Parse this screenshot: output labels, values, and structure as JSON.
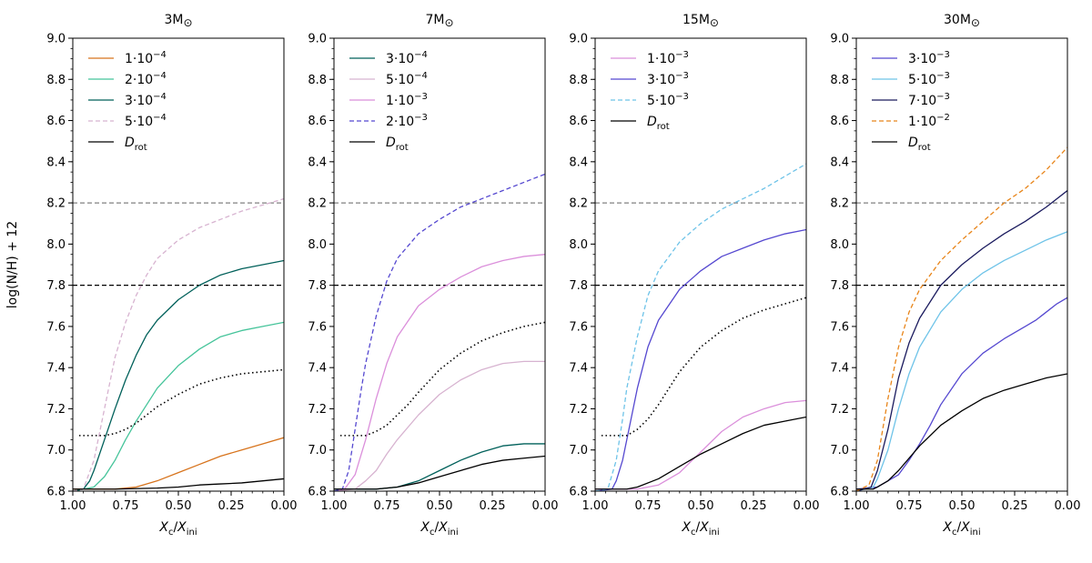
{
  "chart_data": {
    "type": "line",
    "ylabel": "log(N/H) + 12",
    "xlabel": "X_c/X_ini",
    "xlim": [
      1.0,
      0.0
    ],
    "ylim": [
      6.8,
      9.0
    ],
    "x_ticks": [
      "1.00",
      "0.75",
      "0.50",
      "0.25",
      "0.00"
    ],
    "y_ticks": [
      "6.8",
      "7.0",
      "7.2",
      "7.4",
      "7.6",
      "7.8",
      "8.0",
      "8.2",
      "8.4",
      "8.6",
      "8.8",
      "9.0"
    ],
    "reference_lines": [
      {
        "y": 8.2,
        "color": "#808080",
        "style": "dashed"
      },
      {
        "y": 7.8,
        "color": "#000000",
        "style": "dashed"
      }
    ],
    "legend_placement": "upper-left",
    "panels": [
      {
        "title": "3M",
        "series": [
          {
            "name": "1·10⁻⁴",
            "color": "#d7731c",
            "style": "solid",
            "x": [
              1.0,
              0.9,
              0.8,
              0.7,
              0.6,
              0.5,
              0.4,
              0.3,
              0.2,
              0.1,
              0.0
            ],
            "y": [
              6.81,
              6.81,
              6.81,
              6.82,
              6.85,
              6.89,
              6.93,
              6.97,
              7.0,
              7.03,
              7.06
            ]
          },
          {
            "name": "2·10⁻⁴",
            "color": "#45c49a",
            "style": "solid",
            "x": [
              1.0,
              0.95,
              0.9,
              0.85,
              0.8,
              0.75,
              0.7,
              0.6,
              0.5,
              0.4,
              0.3,
              0.2,
              0.1,
              0.0
            ],
            "y": [
              6.8,
              6.81,
              6.82,
              6.87,
              6.95,
              7.05,
              7.14,
              7.3,
              7.41,
              7.49,
              7.55,
              7.58,
              7.6,
              7.62
            ]
          },
          {
            "name": "3·10⁻⁴",
            "color": "#00605a",
            "style": "solid",
            "x": [
              1.0,
              0.95,
              0.92,
              0.9,
              0.85,
              0.8,
              0.75,
              0.7,
              0.65,
              0.6,
              0.5,
              0.4,
              0.3,
              0.2,
              0.1,
              0.0
            ],
            "y": [
              6.8,
              6.81,
              6.85,
              6.9,
              7.05,
              7.2,
              7.34,
              7.46,
              7.56,
              7.63,
              7.73,
              7.8,
              7.85,
              7.88,
              7.9,
              7.92
            ]
          },
          {
            "name": "5·10⁻⁴",
            "color": "#d7b3d0",
            "style": "dashed",
            "x": [
              1.0,
              0.95,
              0.9,
              0.87,
              0.85,
              0.8,
              0.75,
              0.7,
              0.65,
              0.6,
              0.5,
              0.4,
              0.3,
              0.2,
              0.1,
              0.0
            ],
            "y": [
              6.8,
              6.81,
              6.95,
              7.1,
              7.2,
              7.45,
              7.62,
              7.75,
              7.85,
              7.93,
              8.02,
              8.08,
              8.12,
              8.16,
              8.19,
              8.22
            ]
          },
          {
            "name": "D_rot",
            "color": "#000000",
            "style": "solid",
            "x": [
              1.0,
              0.8,
              0.6,
              0.5,
              0.4,
              0.3,
              0.2,
              0.1,
              0.0
            ],
            "y": [
              6.81,
              6.81,
              6.815,
              6.82,
              6.83,
              6.835,
              6.84,
              6.85,
              6.86
            ]
          },
          {
            "name": "",
            "color": "#000000",
            "style": "dotted",
            "x": [
              0.97,
              0.85,
              0.8,
              0.75,
              0.7,
              0.65,
              0.6,
              0.5,
              0.4,
              0.3,
              0.2,
              0.1,
              0.0
            ],
            "y": [
              7.07,
              7.07,
              7.08,
              7.1,
              7.13,
              7.17,
              7.21,
              7.27,
              7.32,
              7.35,
              7.37,
              7.38,
              7.39
            ]
          }
        ]
      },
      {
        "title": "7M",
        "series": [
          {
            "name": "3·10⁻⁴",
            "color": "#00605a",
            "style": "solid",
            "x": [
              1.0,
              0.8,
              0.7,
              0.6,
              0.5,
              0.4,
              0.3,
              0.2,
              0.1,
              0.0
            ],
            "y": [
              6.81,
              6.81,
              6.82,
              6.85,
              6.9,
              6.95,
              6.99,
              7.02,
              7.03,
              7.03
            ]
          },
          {
            "name": "5·10⁻⁴",
            "color": "#d7b3d0",
            "style": "solid",
            "x": [
              1.0,
              0.9,
              0.85,
              0.8,
              0.75,
              0.7,
              0.6,
              0.5,
              0.4,
              0.3,
              0.2,
              0.1,
              0.0
            ],
            "y": [
              6.8,
              6.81,
              6.85,
              6.9,
              6.98,
              7.05,
              7.17,
              7.27,
              7.34,
              7.39,
              7.42,
              7.43,
              7.43
            ]
          },
          {
            "name": "1·10⁻³",
            "color": "#db8fdb",
            "style": "solid",
            "x": [
              1.0,
              0.95,
              0.9,
              0.85,
              0.8,
              0.75,
              0.7,
              0.6,
              0.5,
              0.4,
              0.3,
              0.2,
              0.1,
              0.0
            ],
            "y": [
              6.8,
              6.81,
              6.88,
              7.05,
              7.25,
              7.42,
              7.55,
              7.7,
              7.78,
              7.84,
              7.89,
              7.92,
              7.94,
              7.95
            ]
          },
          {
            "name": "2·10⁻³",
            "color": "#5548d0",
            "style": "dashed",
            "x": [
              1.0,
              0.96,
              0.93,
              0.9,
              0.87,
              0.85,
              0.8,
              0.75,
              0.7,
              0.6,
              0.5,
              0.4,
              0.3,
              0.2,
              0.1,
              0.0
            ],
            "y": [
              6.8,
              6.81,
              6.9,
              7.1,
              7.3,
              7.42,
              7.65,
              7.82,
              7.93,
              8.05,
              8.12,
              8.18,
              8.22,
              8.26,
              8.3,
              8.34
            ]
          },
          {
            "name": "D_rot",
            "color": "#000000",
            "style": "solid",
            "x": [
              1.0,
              0.8,
              0.7,
              0.6,
              0.5,
              0.4,
              0.3,
              0.2,
              0.1,
              0.0
            ],
            "y": [
              6.81,
              6.81,
              6.82,
              6.84,
              6.87,
              6.9,
              6.93,
              6.95,
              6.96,
              6.97
            ]
          },
          {
            "name": "",
            "color": "#000000",
            "style": "dotted",
            "x": [
              0.97,
              0.85,
              0.8,
              0.75,
              0.7,
              0.65,
              0.6,
              0.5,
              0.4,
              0.3,
              0.2,
              0.1,
              0.0
            ],
            "y": [
              7.07,
              7.07,
              7.09,
              7.12,
              7.17,
              7.22,
              7.28,
              7.39,
              7.47,
              7.53,
              7.57,
              7.6,
              7.62
            ]
          }
        ]
      },
      {
        "title": "15M",
        "series": [
          {
            "name": "1·10⁻³",
            "color": "#db8fdb",
            "style": "solid",
            "x": [
              1.0,
              0.8,
              0.7,
              0.6,
              0.5,
              0.4,
              0.3,
              0.2,
              0.1,
              0.0
            ],
            "y": [
              6.81,
              6.81,
              6.83,
              6.89,
              6.99,
              7.09,
              7.16,
              7.2,
              7.23,
              7.24
            ]
          },
          {
            "name": "3·10⁻³",
            "color": "#5548d0",
            "style": "solid",
            "x": [
              1.0,
              0.92,
              0.9,
              0.87,
              0.85,
              0.8,
              0.75,
              0.7,
              0.6,
              0.5,
              0.4,
              0.3,
              0.2,
              0.1,
              0.0
            ],
            "y": [
              6.8,
              6.81,
              6.85,
              6.95,
              7.05,
              7.3,
              7.5,
              7.63,
              7.78,
              7.87,
              7.94,
              7.98,
              8.02,
              8.05,
              8.07
            ]
          },
          {
            "name": "5·10⁻³",
            "color": "#6ec3e8",
            "style": "dashed",
            "x": [
              1.0,
              0.94,
              0.9,
              0.87,
              0.85,
              0.8,
              0.75,
              0.7,
              0.6,
              0.5,
              0.4,
              0.3,
              0.2,
              0.1,
              0.0
            ],
            "y": [
              6.8,
              6.81,
              6.95,
              7.15,
              7.3,
              7.55,
              7.75,
              7.87,
              8.01,
              8.1,
              8.17,
              8.22,
              8.27,
              8.33,
              8.39
            ]
          },
          {
            "name": "D_rot",
            "color": "#000000",
            "style": "solid",
            "x": [
              1.0,
              0.85,
              0.8,
              0.7,
              0.6,
              0.5,
              0.4,
              0.3,
              0.2,
              0.1,
              0.0
            ],
            "y": [
              6.81,
              6.81,
              6.82,
              6.86,
              6.92,
              6.98,
              7.03,
              7.08,
              7.12,
              7.14,
              7.16
            ]
          },
          {
            "name": "",
            "color": "#000000",
            "style": "dotted",
            "x": [
              0.97,
              0.85,
              0.8,
              0.75,
              0.7,
              0.65,
              0.6,
              0.5,
              0.4,
              0.3,
              0.2,
              0.1,
              0.0
            ],
            "y": [
              7.07,
              7.07,
              7.1,
              7.15,
              7.22,
              7.3,
              7.38,
              7.5,
              7.58,
              7.64,
              7.68,
              7.71,
              7.74
            ]
          }
        ]
      },
      {
        "title": "30M",
        "series": [
          {
            "name": "3·10⁻³",
            "color": "#5548d0",
            "style": "solid",
            "x": [
              1.0,
              0.9,
              0.8,
              0.75,
              0.7,
              0.65,
              0.6,
              0.5,
              0.4,
              0.3,
              0.25,
              0.2,
              0.15,
              0.1,
              0.05,
              0.0
            ],
            "y": [
              6.81,
              6.82,
              6.88,
              6.95,
              7.03,
              7.12,
              7.22,
              7.37,
              7.47,
              7.54,
              7.57,
              7.6,
              7.63,
              7.67,
              7.71,
              7.74
            ]
          },
          {
            "name": "5·10⁻³",
            "color": "#6ec3e8",
            "style": "solid",
            "x": [
              1.0,
              0.92,
              0.9,
              0.85,
              0.8,
              0.75,
              0.7,
              0.6,
              0.5,
              0.4,
              0.3,
              0.2,
              0.1,
              0.0
            ],
            "y": [
              6.8,
              6.82,
              6.86,
              7.0,
              7.2,
              7.37,
              7.5,
              7.67,
              7.78,
              7.86,
              7.92,
              7.97,
              8.02,
              8.06
            ]
          },
          {
            "name": "7·10⁻³",
            "color": "#1a1a5e",
            "style": "solid",
            "x": [
              1.0,
              0.93,
              0.9,
              0.85,
              0.8,
              0.75,
              0.7,
              0.6,
              0.5,
              0.4,
              0.3,
              0.2,
              0.1,
              0.0
            ],
            "y": [
              6.8,
              6.82,
              6.9,
              7.1,
              7.35,
              7.52,
              7.64,
              7.8,
              7.9,
              7.98,
              8.05,
              8.11,
              8.18,
              8.26
            ]
          },
          {
            "name": "1·10⁻²",
            "color": "#e8851a",
            "style": "dashed",
            "x": [
              1.0,
              0.94,
              0.9,
              0.85,
              0.8,
              0.75,
              0.7,
              0.6,
              0.5,
              0.4,
              0.3,
              0.2,
              0.1,
              0.0
            ],
            "y": [
              6.8,
              6.83,
              6.95,
              7.25,
              7.5,
              7.67,
              7.78,
              7.92,
              8.02,
              8.11,
              8.2,
              8.27,
              8.36,
              8.47
            ]
          },
          {
            "name": "D_rot",
            "color": "#000000",
            "style": "solid",
            "x": [
              1.0,
              0.92,
              0.9,
              0.85,
              0.8,
              0.75,
              0.7,
              0.6,
              0.5,
              0.4,
              0.3,
              0.2,
              0.1,
              0.0
            ],
            "y": [
              6.81,
              6.81,
              6.82,
              6.85,
              6.9,
              6.96,
              7.02,
              7.12,
              7.19,
              7.25,
              7.29,
              7.32,
              7.35,
              7.37
            ]
          }
        ]
      }
    ]
  }
}
